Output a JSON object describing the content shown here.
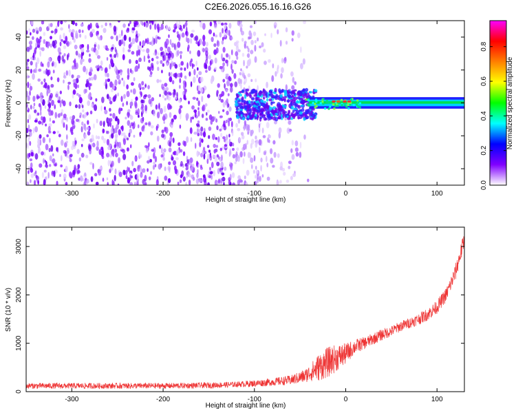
{
  "title": "C2E6.2026.055.16.16.G26",
  "chart_data": [
    {
      "type": "heatmap",
      "xlabel": "Height of straight line (km)",
      "ylabel": "Frequency (Hz)",
      "xlim": [
        -350,
        130
      ],
      "ylim": [
        -50,
        50
      ],
      "xticks": [
        -300,
        -200,
        -100,
        0,
        100
      ],
      "yticks": [
        -40,
        -20,
        0,
        20,
        40
      ],
      "colorbar": {
        "label": "Normalized spectral amplitude",
        "range": [
          0.0,
          0.95
        ],
        "ticks": [
          0.0,
          0.2,
          0.4,
          0.6,
          0.8
        ],
        "colors": [
          "#ffffff",
          "#8000ff",
          "#0000ff",
          "#00ffff",
          "#00ff00",
          "#ffff00",
          "#ff8000",
          "#ff0000",
          "#ff00ff"
        ]
      },
      "regions": [
        {
          "x_range": [
            -350,
            -120
          ],
          "description": "broadband noise"
        },
        {
          "x_range": [
            -120,
            -40
          ],
          "description": "transition, signal emerging near 0 Hz"
        },
        {
          "x_range": [
            -40,
            130
          ],
          "description": "narrow carrier near 0 Hz"
        }
      ]
    },
    {
      "type": "line",
      "xlabel": "Height of straight line (km)",
      "ylabel": "SNR (10 * v/v)",
      "xlim": [
        -350,
        130
      ],
      "ylim": [
        0,
        3400
      ],
      "xticks": [
        -300,
        -200,
        -100,
        0,
        100
      ],
      "yticks": [
        0,
        1000,
        2000,
        3000
      ],
      "series": [
        {
          "color": "#ee3333",
          "x": [
            -350,
            -300,
            -250,
            -200,
            -150,
            -120,
            -100,
            -80,
            -60,
            -45,
            -40,
            -30,
            -20,
            -10,
            0,
            10,
            20,
            30,
            40,
            50,
            60,
            70,
            80,
            90,
            100,
            110,
            120,
            130
          ],
          "y": [
            120,
            120,
            120,
            120,
            130,
            150,
            170,
            200,
            240,
            320,
            380,
            500,
            600,
            700,
            780,
            930,
            1000,
            1090,
            1180,
            1250,
            1350,
            1420,
            1500,
            1600,
            1750,
            2000,
            2450,
            3150
          ],
          "noise": [
            60,
            60,
            60,
            60,
            60,
            60,
            70,
            80,
            100,
            140,
            170,
            280,
            320,
            280,
            220,
            150,
            130,
            120,
            120,
            110,
            110,
            110,
            120,
            130,
            140,
            150,
            170,
            180
          ]
        }
      ]
    }
  ]
}
